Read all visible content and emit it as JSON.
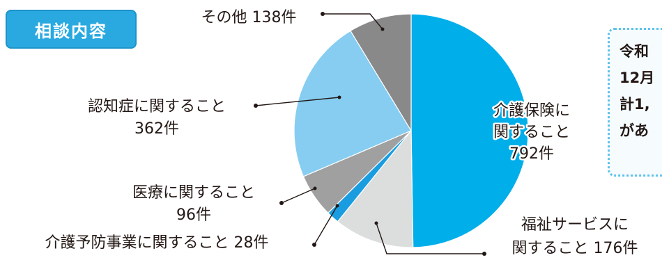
{
  "badge": {
    "label": "相談内容"
  },
  "note": {
    "lines": [
      "令和",
      "12月",
      "計1,",
      "があ"
    ]
  },
  "chart_data": {
    "type": "pie",
    "start_angle_deg": 0,
    "direction": "clockwise",
    "slices": [
      {
        "name": "介護保険に関すること",
        "value": 792,
        "label_lines": [
          "介護保険に",
          "関すること",
          "792件"
        ],
        "color": "#00aeea"
      },
      {
        "name": "福祉サービスに関すること",
        "value": 176,
        "label_lines": [
          "福祉サービスに",
          "関すること  176件"
        ],
        "color": "#dcdddd"
      },
      {
        "name": "介護予防事業に関すること",
        "value": 28,
        "label_lines": [
          "介護予防事業に関すること  28件"
        ],
        "color": "#1a9de0"
      },
      {
        "name": "医療に関すること",
        "value": 96,
        "label_lines": [
          "医療に関すること",
          "96件"
        ],
        "color": "#a0a0a0"
      },
      {
        "name": "認知症に関すること",
        "value": 362,
        "label_lines": [
          "認知症に関すること",
          "362件"
        ],
        "color": "#86cdf1"
      },
      {
        "name": "その他",
        "value": 138,
        "label_lines": [
          "その他  138件"
        ],
        "color": "#898989"
      }
    ]
  }
}
